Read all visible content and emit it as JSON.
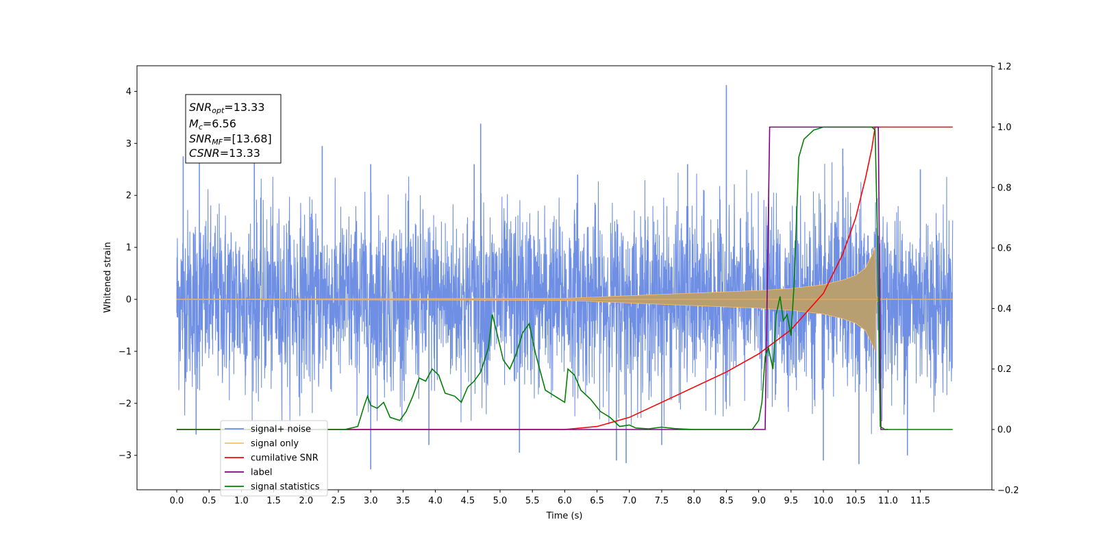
{
  "chart_data": {
    "type": "line",
    "xlabel": "Time (s)",
    "ylabel_left": "Whitened strain",
    "xlim": [
      -0.6,
      12.6
    ],
    "ylim_left": [
      -3.65,
      4.5
    ],
    "ylim_right": [
      -0.2,
      1.2
    ],
    "x_ticks": [
      "0.0",
      "0.5",
      "1.0",
      "1.5",
      "2.0",
      "2.5",
      "3.0",
      "3.5",
      "4.0",
      "4.5",
      "5.0",
      "5.5",
      "6.0",
      "6.5",
      "7.0",
      "7.5",
      "8.0",
      "8.5",
      "9.0",
      "9.5",
      "10.0",
      "10.5",
      "11.0",
      "11.5"
    ],
    "y_left_ticks": [
      "−3",
      "−2",
      "−1",
      "0",
      "1",
      "2",
      "3",
      "4"
    ],
    "y_right_ticks": [
      "−0.2",
      "0.0",
      "0.2",
      "0.4",
      "0.6",
      "0.8",
      "1.0",
      "1.2"
    ],
    "grid": false,
    "legend_position": "lower-left",
    "annotation": {
      "snr_opt": {
        "symbol": "SNR",
        "sub": "opt",
        "value": "=13.33"
      },
      "mc": {
        "symbol": "M",
        "sub": "c",
        "value": "=6.56"
      },
      "snr_mf": {
        "symbol": "SNR",
        "sub": "MF",
        "value": "=[13.68]"
      },
      "csnr": {
        "symbol": "CSNR",
        "sub": "",
        "value": "=13.33"
      }
    },
    "series": [
      {
        "name": "signal+ noise",
        "color": "#6f8fe4",
        "axis": "left",
        "style": "noise envelope, peaks",
        "peaks": [
          [
            0.1,
            2.75
          ],
          [
            0.35,
            2.7
          ],
          [
            1.2,
            2.65
          ],
          [
            2.25,
            2.95
          ],
          [
            3.0,
            2.6
          ],
          [
            4.6,
            2.6
          ],
          [
            4.7,
            3.38
          ],
          [
            6.2,
            2.4
          ],
          [
            7.9,
            2.6
          ],
          [
            8.5,
            4.12
          ],
          [
            10.3,
            2.9
          ],
          [
            11.5,
            2.5
          ]
        ],
        "troughs": [
          [
            0.3,
            -2.6
          ],
          [
            3.0,
            -3.27
          ],
          [
            3.9,
            -2.8
          ],
          [
            5.3,
            -2.95
          ],
          [
            6.8,
            -3.1
          ],
          [
            6.95,
            -3.15
          ],
          [
            7.5,
            -2.8
          ],
          [
            10.0,
            -3.1
          ],
          [
            10.55,
            -3.17
          ],
          [
            11.3,
            -3.0
          ]
        ]
      },
      {
        "name": "signal only",
        "color": "#ffbf66",
        "axis": "left",
        "style": "chirp envelope",
        "envelope": [
          [
            0.0,
            0.005
          ],
          [
            6.0,
            0.02
          ],
          [
            7.0,
            0.07
          ],
          [
            8.0,
            0.12
          ],
          [
            9.0,
            0.17
          ],
          [
            9.5,
            0.21
          ],
          [
            10.0,
            0.28
          ],
          [
            10.3,
            0.37
          ],
          [
            10.5,
            0.46
          ],
          [
            10.65,
            0.6
          ],
          [
            10.75,
            0.85
          ],
          [
            10.8,
            1.0
          ],
          [
            10.82,
            0.05
          ],
          [
            10.9,
            0.005
          ],
          [
            12.0,
            0.005
          ]
        ]
      },
      {
        "name": "cumilative SNR",
        "color": "#ff0000",
        "axis": "right",
        "points": [
          [
            0.0,
            0.0
          ],
          [
            6.0,
            0.0
          ],
          [
            6.5,
            0.01
          ],
          [
            7.0,
            0.04
          ],
          [
            7.5,
            0.09
          ],
          [
            8.0,
            0.14
          ],
          [
            8.5,
            0.19
          ],
          [
            9.0,
            0.25
          ],
          [
            9.5,
            0.33
          ],
          [
            10.0,
            0.45
          ],
          [
            10.3,
            0.58
          ],
          [
            10.5,
            0.7
          ],
          [
            10.65,
            0.83
          ],
          [
            10.75,
            0.93
          ],
          [
            10.8,
            1.0
          ],
          [
            12.0,
            1.0
          ]
        ]
      },
      {
        "name": "label",
        "color": "#800080",
        "axis": "right",
        "points": [
          [
            0.0,
            0.0
          ],
          [
            9.1,
            0.0
          ],
          [
            9.17,
            1.0
          ],
          [
            10.85,
            1.0
          ],
          [
            10.89,
            0.0
          ],
          [
            11.0,
            0.0
          ]
        ]
      },
      {
        "name": "signal statistics",
        "color": "#008000",
        "axis": "right",
        "points": [
          [
            0.0,
            0.0
          ],
          [
            2.6,
            0.0
          ],
          [
            2.8,
            0.01
          ],
          [
            2.9,
            0.08
          ],
          [
            2.95,
            0.11
          ],
          [
            3.0,
            0.08
          ],
          [
            3.1,
            0.07
          ],
          [
            3.2,
            0.09
          ],
          [
            3.3,
            0.04
          ],
          [
            3.45,
            0.03
          ],
          [
            3.55,
            0.06
          ],
          [
            3.65,
            0.11
          ],
          [
            3.75,
            0.17
          ],
          [
            3.85,
            0.16
          ],
          [
            3.95,
            0.2
          ],
          [
            4.05,
            0.18
          ],
          [
            4.15,
            0.12
          ],
          [
            4.3,
            0.11
          ],
          [
            4.4,
            0.09
          ],
          [
            4.5,
            0.14
          ],
          [
            4.6,
            0.16
          ],
          [
            4.7,
            0.19
          ],
          [
            4.82,
            0.27
          ],
          [
            4.88,
            0.38
          ],
          [
            4.95,
            0.32
          ],
          [
            5.05,
            0.23
          ],
          [
            5.15,
            0.2
          ],
          [
            5.25,
            0.25
          ],
          [
            5.35,
            0.32
          ],
          [
            5.45,
            0.35
          ],
          [
            5.55,
            0.25
          ],
          [
            5.7,
            0.13
          ],
          [
            5.85,
            0.11
          ],
          [
            6.0,
            0.09
          ],
          [
            6.05,
            0.2
          ],
          [
            6.15,
            0.18
          ],
          [
            6.25,
            0.13
          ],
          [
            6.4,
            0.1
          ],
          [
            6.55,
            0.06
          ],
          [
            6.7,
            0.04
          ],
          [
            6.85,
            0.01
          ],
          [
            7.0,
            0.015
          ],
          [
            7.1,
            0.005
          ],
          [
            7.3,
            0.002
          ],
          [
            7.5,
            0.008
          ],
          [
            7.7,
            0.003
          ],
          [
            8.0,
            0.0
          ],
          [
            8.9,
            0.0
          ],
          [
            9.0,
            0.03
          ],
          [
            9.05,
            0.09
          ],
          [
            9.1,
            0.24
          ],
          [
            9.15,
            0.27
          ],
          [
            9.22,
            0.2
          ],
          [
            9.27,
            0.38
          ],
          [
            9.33,
            0.44
          ],
          [
            9.38,
            0.36
          ],
          [
            9.44,
            0.38
          ],
          [
            9.5,
            0.31
          ],
          [
            9.55,
            0.49
          ],
          [
            9.62,
            0.9
          ],
          [
            9.7,
            0.96
          ],
          [
            9.85,
            0.99
          ],
          [
            10.0,
            1.0
          ],
          [
            10.75,
            1.0
          ],
          [
            10.8,
            0.99
          ],
          [
            10.84,
            0.6
          ],
          [
            10.88,
            0.01
          ],
          [
            10.95,
            0.0
          ],
          [
            12.0,
            0.0
          ]
        ]
      }
    ]
  }
}
